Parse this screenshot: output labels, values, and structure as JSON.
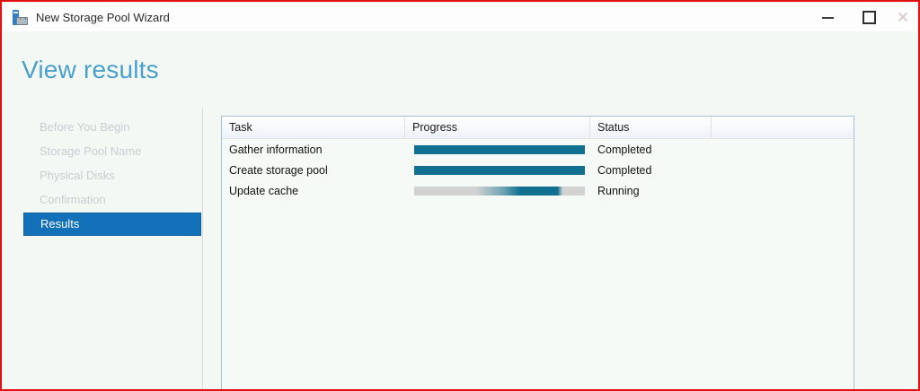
{
  "window": {
    "title": "New Storage Pool Wizard",
    "icon": "storage-pool-wizard-icon",
    "controls": [
      "minimize",
      "maximize",
      "close"
    ]
  },
  "page": {
    "heading": "View results"
  },
  "sidebar": {
    "items": [
      {
        "label": "Before You Begin",
        "state": "disabled"
      },
      {
        "label": "Storage Pool Name",
        "state": "disabled"
      },
      {
        "label": "Physical Disks",
        "state": "disabled"
      },
      {
        "label": "Confirmation",
        "state": "disabled"
      },
      {
        "label": "Results",
        "state": "selected"
      }
    ]
  },
  "results_table": {
    "columns": [
      "Task",
      "Progress",
      "Status",
      ""
    ],
    "rows": [
      {
        "task": "Gather information",
        "progress_percent": 100,
        "progress_style": "complete",
        "status": "Completed"
      },
      {
        "task": "Create storage pool",
        "progress_percent": 100,
        "progress_style": "complete",
        "status": "Completed"
      },
      {
        "task": "Update cache",
        "progress_percent": 75,
        "progress_style": "indeterminate",
        "status": "Running"
      }
    ]
  },
  "colors": {
    "capture_border": "#e40f0f",
    "titlebar_bg": "#fcfdfc",
    "content_bg": "#f4f8f5",
    "table_bg": "#f6faf7",
    "heading_blue": "#4aa0cc",
    "selected_blue": "#1271b8",
    "selected_blue_border": "#0f5f9c",
    "disabled_gray": "#c9cdcf",
    "icon_blue": "#2f7fc1",
    "table_border": "#a5bfd3",
    "progress_teal": "#117090",
    "progress_track": "#d2d2d2"
  }
}
